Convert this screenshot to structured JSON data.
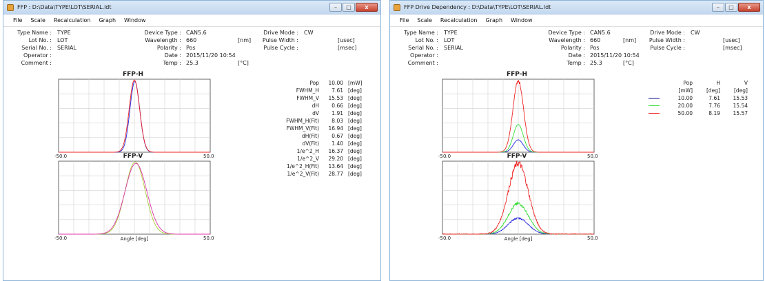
{
  "window1": {
    "title": "FFP : D:\\Data\\TYPE\\LOT\\SERIAL.ldt",
    "menu": [
      "File",
      "Scale",
      "Recalculation",
      "Graph",
      "Window"
    ],
    "info": {
      "col1": [
        {
          "label": "Type Name :",
          "value": "TYPE"
        },
        {
          "label": "Lot No. :",
          "value": "LOT"
        },
        {
          "label": "Serial No. :",
          "value": "SERIAL"
        },
        {
          "label": "Operator :",
          "value": ""
        },
        {
          "label": "Comment :",
          "value": ""
        }
      ],
      "col2": [
        {
          "label": "Device Type :",
          "value": "CAN5.6",
          "unit": ""
        },
        {
          "label": "Wavelength :",
          "value": "660",
          "unit": "[nm]"
        },
        {
          "label": "Polarity :",
          "value": "Pos",
          "unit": ""
        },
        {
          "label": "Date :",
          "value": "2015/11/20 10:54",
          "unit": ""
        },
        {
          "label": "Temp :",
          "value": "25.3",
          "unit": "[°C]"
        }
      ],
      "col3": [
        {
          "label": "Drive Mode :",
          "value": "CW",
          "unit": ""
        },
        {
          "label": "Pulse Width :",
          "value": "",
          "unit": "[usec]"
        },
        {
          "label": "Pulse Cycle :",
          "value": "",
          "unit": "[msec]"
        }
      ]
    },
    "params": [
      {
        "name": "Pop",
        "value": "10.00",
        "unit": "[mW]"
      },
      {
        "name": "FWHM_H",
        "value": "7.61",
        "unit": "[deg]"
      },
      {
        "name": "FWHM_V",
        "value": "15.53",
        "unit": "[deg]"
      },
      {
        "name": "dH",
        "value": "0.66",
        "unit": "[deg]"
      },
      {
        "name": "dV",
        "value": "1.91",
        "unit": "[deg]"
      },
      {
        "name": "FWHM_H(Fit)",
        "value": "8.03",
        "unit": "[deg]"
      },
      {
        "name": "FWHM_V(Fit)",
        "value": "16.94",
        "unit": "[deg]"
      },
      {
        "name": "dH(Fit)",
        "value": "0.67",
        "unit": "[deg]"
      },
      {
        "name": "dV(Fit)",
        "value": "1.40",
        "unit": "[deg]"
      },
      {
        "name": "1/e^2_H",
        "value": "16.37",
        "unit": "[deg]"
      },
      {
        "name": "1/e^2_V",
        "value": "29.20",
        "unit": "[deg]"
      },
      {
        "name": "1/e^2_H(Fit)",
        "value": "13.64",
        "unit": "[deg]"
      },
      {
        "name": "1/e^2_V(Fit)",
        "value": "28.77",
        "unit": "[deg]"
      }
    ]
  },
  "window2": {
    "title": "FFP Drive Dependency : D:\\Data\\TYPE\\LOT\\SERIAL.ldt",
    "menu": [
      "File",
      "Scale",
      "Recalculation",
      "Graph",
      "Window"
    ],
    "info": {
      "col1": [
        {
          "label": "Type Name :",
          "value": "TYPE"
        },
        {
          "label": "Lot No. :",
          "value": "LOT"
        },
        {
          "label": "Serial No. :",
          "value": "SERIAL"
        },
        {
          "label": "Operator :",
          "value": ""
        },
        {
          "label": "Comment :",
          "value": ""
        }
      ],
      "col2": [
        {
          "label": "Device Type :",
          "value": "CAN5.6",
          "unit": ""
        },
        {
          "label": "Wavelength :",
          "value": "660",
          "unit": "[nm]"
        },
        {
          "label": "Polarity :",
          "value": "Pos",
          "unit": ""
        },
        {
          "label": "Date :",
          "value": "2015/11/20 10:54",
          "unit": ""
        },
        {
          "label": "Temp :",
          "value": "25.3",
          "unit": "[°C]"
        }
      ],
      "col3": [
        {
          "label": "Drive Mode :",
          "value": "CW",
          "unit": ""
        },
        {
          "label": "Pulse Width :",
          "value": "",
          "unit": "[usec]"
        },
        {
          "label": "Pulse Cycle :",
          "value": "",
          "unit": "[msec]"
        }
      ]
    },
    "table": {
      "headers": [
        "Pop",
        "H",
        "V"
      ],
      "units": [
        "[mW]",
        "[deg]",
        "[deg]"
      ],
      "rows": [
        {
          "color": "#000080",
          "pop": "10.00",
          "h": "7.61",
          "v": "15.53"
        },
        {
          "color": "#33dd33",
          "pop": "20.00",
          "h": "7.76",
          "v": "15.54"
        },
        {
          "color": "#ee2222",
          "pop": "50.00",
          "h": "8.19",
          "v": "15.57"
        }
      ]
    }
  },
  "chart_data": [
    {
      "type": "line",
      "title": "FFP-H",
      "window": 1,
      "xlim": [
        -50,
        50
      ],
      "ylim": [
        0,
        1.0
      ],
      "grid": true,
      "tick_labels": [
        "-50.0",
        "50.0"
      ],
      "xlabel": "",
      "series": [
        {
          "color": "#2222dd",
          "center": 0.3,
          "fwhm": 7.61,
          "amp": 0.97
        },
        {
          "color": "#ee2222",
          "center": 0.0,
          "fwhm": 8.03,
          "amp": 0.99
        }
      ]
    },
    {
      "type": "line",
      "title": "FFP-V",
      "window": 1,
      "xlim": [
        -50,
        50
      ],
      "ylim": [
        0,
        1.0
      ],
      "grid": true,
      "tick_labels": [
        "-50.0",
        "50.0"
      ],
      "xlabel": "Angle [deg]",
      "series": [
        {
          "color": "#aacc33",
          "center": 0.5,
          "fwhm": 15.53,
          "amp": 0.99
        },
        {
          "color": "#dd33aa",
          "center": 1.0,
          "fwhm": 16.94,
          "amp": 0.97
        }
      ]
    },
    {
      "type": "line",
      "title": "FFP-H",
      "window": 2,
      "xlim": [
        -50,
        50
      ],
      "ylim": [
        0,
        1.0
      ],
      "grid": true,
      "tick_labels": [
        "-50.0",
        "50.0"
      ],
      "xlabel": "",
      "series": [
        {
          "name": "10.00",
          "color": "#2222dd",
          "center": 0.0,
          "fwhm": 7.61,
          "amp": 0.17
        },
        {
          "name": "20.00",
          "color": "#33dd33",
          "center": 0.0,
          "fwhm": 7.76,
          "amp": 0.38
        },
        {
          "name": "50.00",
          "color": "#ee2222",
          "center": 0.0,
          "fwhm": 8.19,
          "amp": 0.98
        }
      ]
    },
    {
      "type": "line",
      "title": "FFP-V",
      "window": 2,
      "xlim": [
        -50,
        50
      ],
      "ylim": [
        0,
        1.0
      ],
      "grid": true,
      "tick_labels": [
        "-50.0",
        "50.0"
      ],
      "xlabel": "Angle [deg]",
      "series": [
        {
          "name": "10.00",
          "color": "#2222dd",
          "center": 0.0,
          "fwhm": 15.53,
          "amp": 0.22
        },
        {
          "name": "20.00",
          "color": "#33dd33",
          "center": 0.0,
          "fwhm": 15.54,
          "amp": 0.42
        },
        {
          "name": "50.00",
          "color": "#ee2222",
          "center": 0.0,
          "fwhm": 15.57,
          "amp": 0.97
        }
      ]
    }
  ]
}
